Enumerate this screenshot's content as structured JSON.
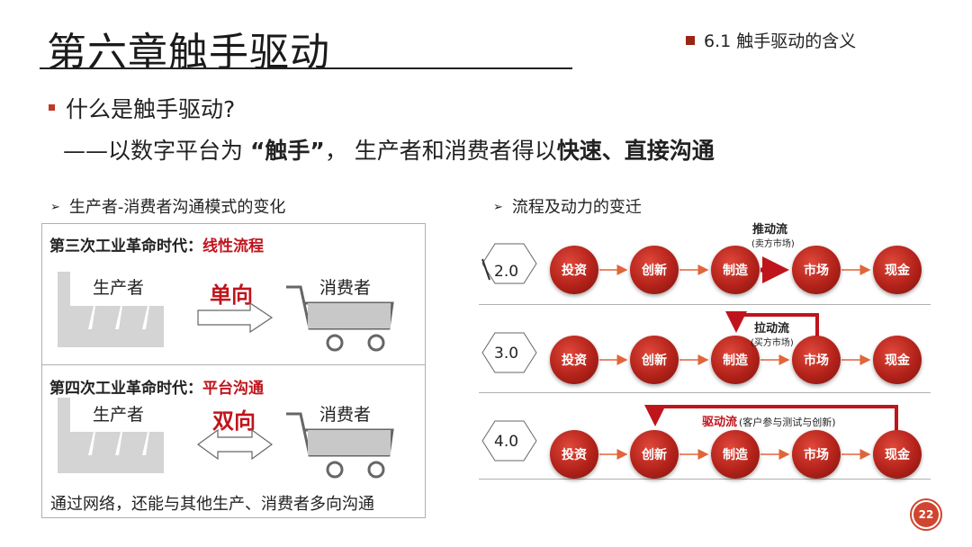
{
  "title": "第六章触手驱动",
  "section_tag": "6.1 触手驱动的含义",
  "question": "什么是触手驱动?",
  "answer": {
    "prefix": "——以数字平台为 ",
    "bold1": "“触手”",
    "middle": "， 生产者和消费者得以",
    "bold2": "快速、直接沟通"
  },
  "left_panel": {
    "heading": "生产者-消费者沟通模式的变化",
    "third": {
      "era_label": "第三次工业革命时代：",
      "era_highlight": "线性流程",
      "producer": "生产者",
      "direction": "单向",
      "consumer": "消费者"
    },
    "fourth": {
      "era_label": "第四次工业革命时代：",
      "era_highlight": "平台沟通",
      "producer": "生产者",
      "direction": "双向",
      "consumer": "消费者"
    },
    "note": "通过网络，还能与其他生产、消费者多向沟通"
  },
  "right_panel": {
    "heading": "流程及动力的变迁",
    "rows": [
      {
        "version": "2.0",
        "nodes": [
          "投资",
          "创新",
          "制造",
          "市场",
          "现金"
        ],
        "flow_label": "推动流",
        "flow_sub": "(卖方市场)"
      },
      {
        "version": "3.0",
        "nodes": [
          "投资",
          "创新",
          "制造",
          "市场",
          "现金"
        ],
        "flow_label": "拉动流",
        "flow_sub": "(买方市场)"
      },
      {
        "version": "4.0",
        "nodes": [
          "投资",
          "创新",
          "制造",
          "市场",
          "现金"
        ],
        "flow_label": "驱动流",
        "flow_sub": "(客户参与测试与创新)"
      }
    ]
  },
  "page_number": "22",
  "colors": {
    "accent": "#c0141c",
    "node": "#b3221a",
    "arrow": "#e0653a"
  },
  "icons": [
    "factory-icon",
    "cart-icon",
    "right-arrow-icon",
    "double-arrow-icon"
  ]
}
